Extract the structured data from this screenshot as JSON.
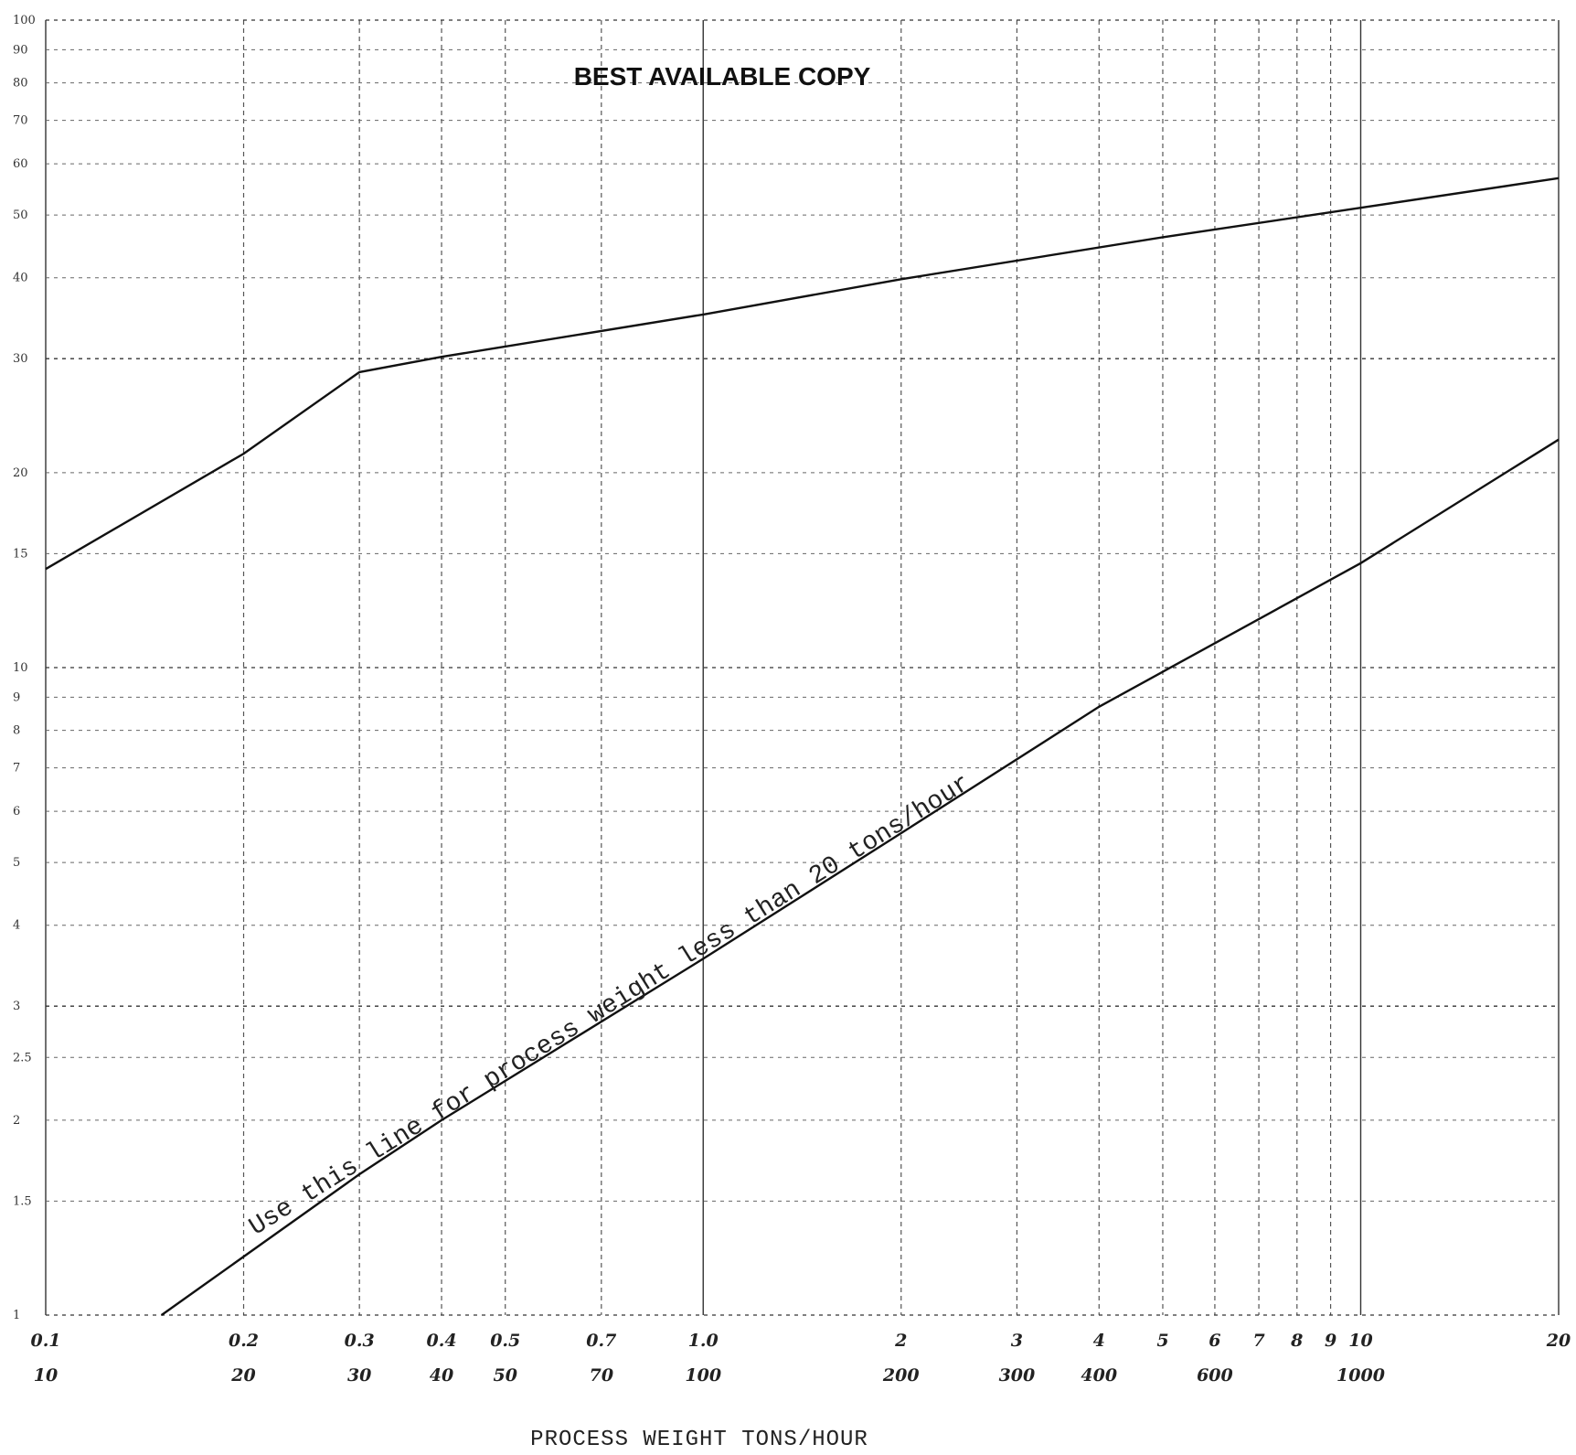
{
  "banner": "BEST AVAILABLE COPY",
  "chart_data": {
    "type": "line",
    "title": "",
    "xlabel": "PROCESS WEIGHT TONS/HOUR",
    "ylabel": "",
    "x_scale": "log",
    "y_scale": "log",
    "xlim": [
      0.1,
      20
    ],
    "ylim": [
      1,
      100
    ],
    "grid": true,
    "x_tick_values": [
      0.1,
      0.2,
      0.3,
      0.4,
      0.5,
      0.7,
      1.0,
      2,
      3,
      4,
      5,
      6,
      7,
      8,
      9,
      10,
      20
    ],
    "x_tick_labels_upper": [
      "0.1",
      "0.2",
      "0.3",
      "0.4",
      "0.5",
      "0.7",
      "1.0",
      "2",
      "3",
      "4",
      "5",
      "6",
      "7",
      "8",
      "9",
      "10",
      "20"
    ],
    "x_tick_labels_lower": [
      {
        "value": 0.1,
        "label": "10"
      },
      {
        "value": 0.2,
        "label": "20"
      },
      {
        "value": 0.3,
        "label": "30"
      },
      {
        "value": 0.4,
        "label": "40"
      },
      {
        "value": 0.5,
        "label": "50"
      },
      {
        "value": 0.7,
        "label": "70"
      },
      {
        "value": 1.0,
        "label": "100"
      },
      {
        "value": 2,
        "label": "200"
      },
      {
        "value": 3,
        "label": "300"
      },
      {
        "value": 4,
        "label": "400"
      },
      {
        "value": 6,
        "label": "600"
      },
      {
        "value": 10,
        "label": "1000"
      }
    ],
    "y_ticks": [
      {
        "value": 100,
        "label": "100"
      },
      {
        "value": 90,
        "label": "90"
      },
      {
        "value": 80,
        "label": "80"
      },
      {
        "value": 70,
        "label": "70"
      },
      {
        "value": 60,
        "label": "60"
      },
      {
        "value": 50,
        "label": "50"
      },
      {
        "value": 40,
        "label": "40"
      },
      {
        "value": 30,
        "label": "30"
      },
      {
        "value": 20,
        "label": "20"
      },
      {
        "value": 15,
        "label": "15"
      },
      {
        "value": 10,
        "label": "10"
      },
      {
        "value": 9,
        "label": "9"
      },
      {
        "value": 8,
        "label": "8"
      },
      {
        "value": 7,
        "label": "7"
      },
      {
        "value": 6,
        "label": "6"
      },
      {
        "value": 5,
        "label": "5"
      },
      {
        "value": 4,
        "label": "4"
      },
      {
        "value": 3,
        "label": "3"
      },
      {
        "value": 2.5,
        "label": "2.5"
      },
      {
        "value": 2,
        "label": "2"
      },
      {
        "value": 1.5,
        "label": "1.5"
      },
      {
        "value": 1,
        "label": "1"
      }
    ],
    "series": [
      {
        "points": [
          {
            "x": 0.1,
            "y": 14.2
          },
          {
            "x": 0.2,
            "y": 21.4
          },
          {
            "x": 0.3,
            "y": 28.6
          },
          {
            "x": 0.4,
            "y": 30.2
          },
          {
            "x": 1.0,
            "y": 35.1
          },
          {
            "x": 2,
            "y": 39.8
          },
          {
            "x": 5,
            "y": 46.2
          },
          {
            "x": 10,
            "y": 51.3
          },
          {
            "x": 20,
            "y": 57.0
          }
        ]
      },
      {
        "points": [
          {
            "x": 0.15,
            "y": 1.0
          },
          {
            "x": 0.3,
            "y": 1.65
          },
          {
            "x": 0.4,
            "y": 2.0
          },
          {
            "x": 1.0,
            "y": 3.55
          },
          {
            "x": 2,
            "y": 5.55
          },
          {
            "x": 4,
            "y": 8.7
          },
          {
            "x": 10,
            "y": 14.5
          },
          {
            "x": 20,
            "y": 22.5
          }
        ]
      }
    ],
    "annotations": [
      {
        "text": "Use this line for process weight less than 20 tons/hour",
        "x": 0.73,
        "y": 2.95
      }
    ]
  }
}
